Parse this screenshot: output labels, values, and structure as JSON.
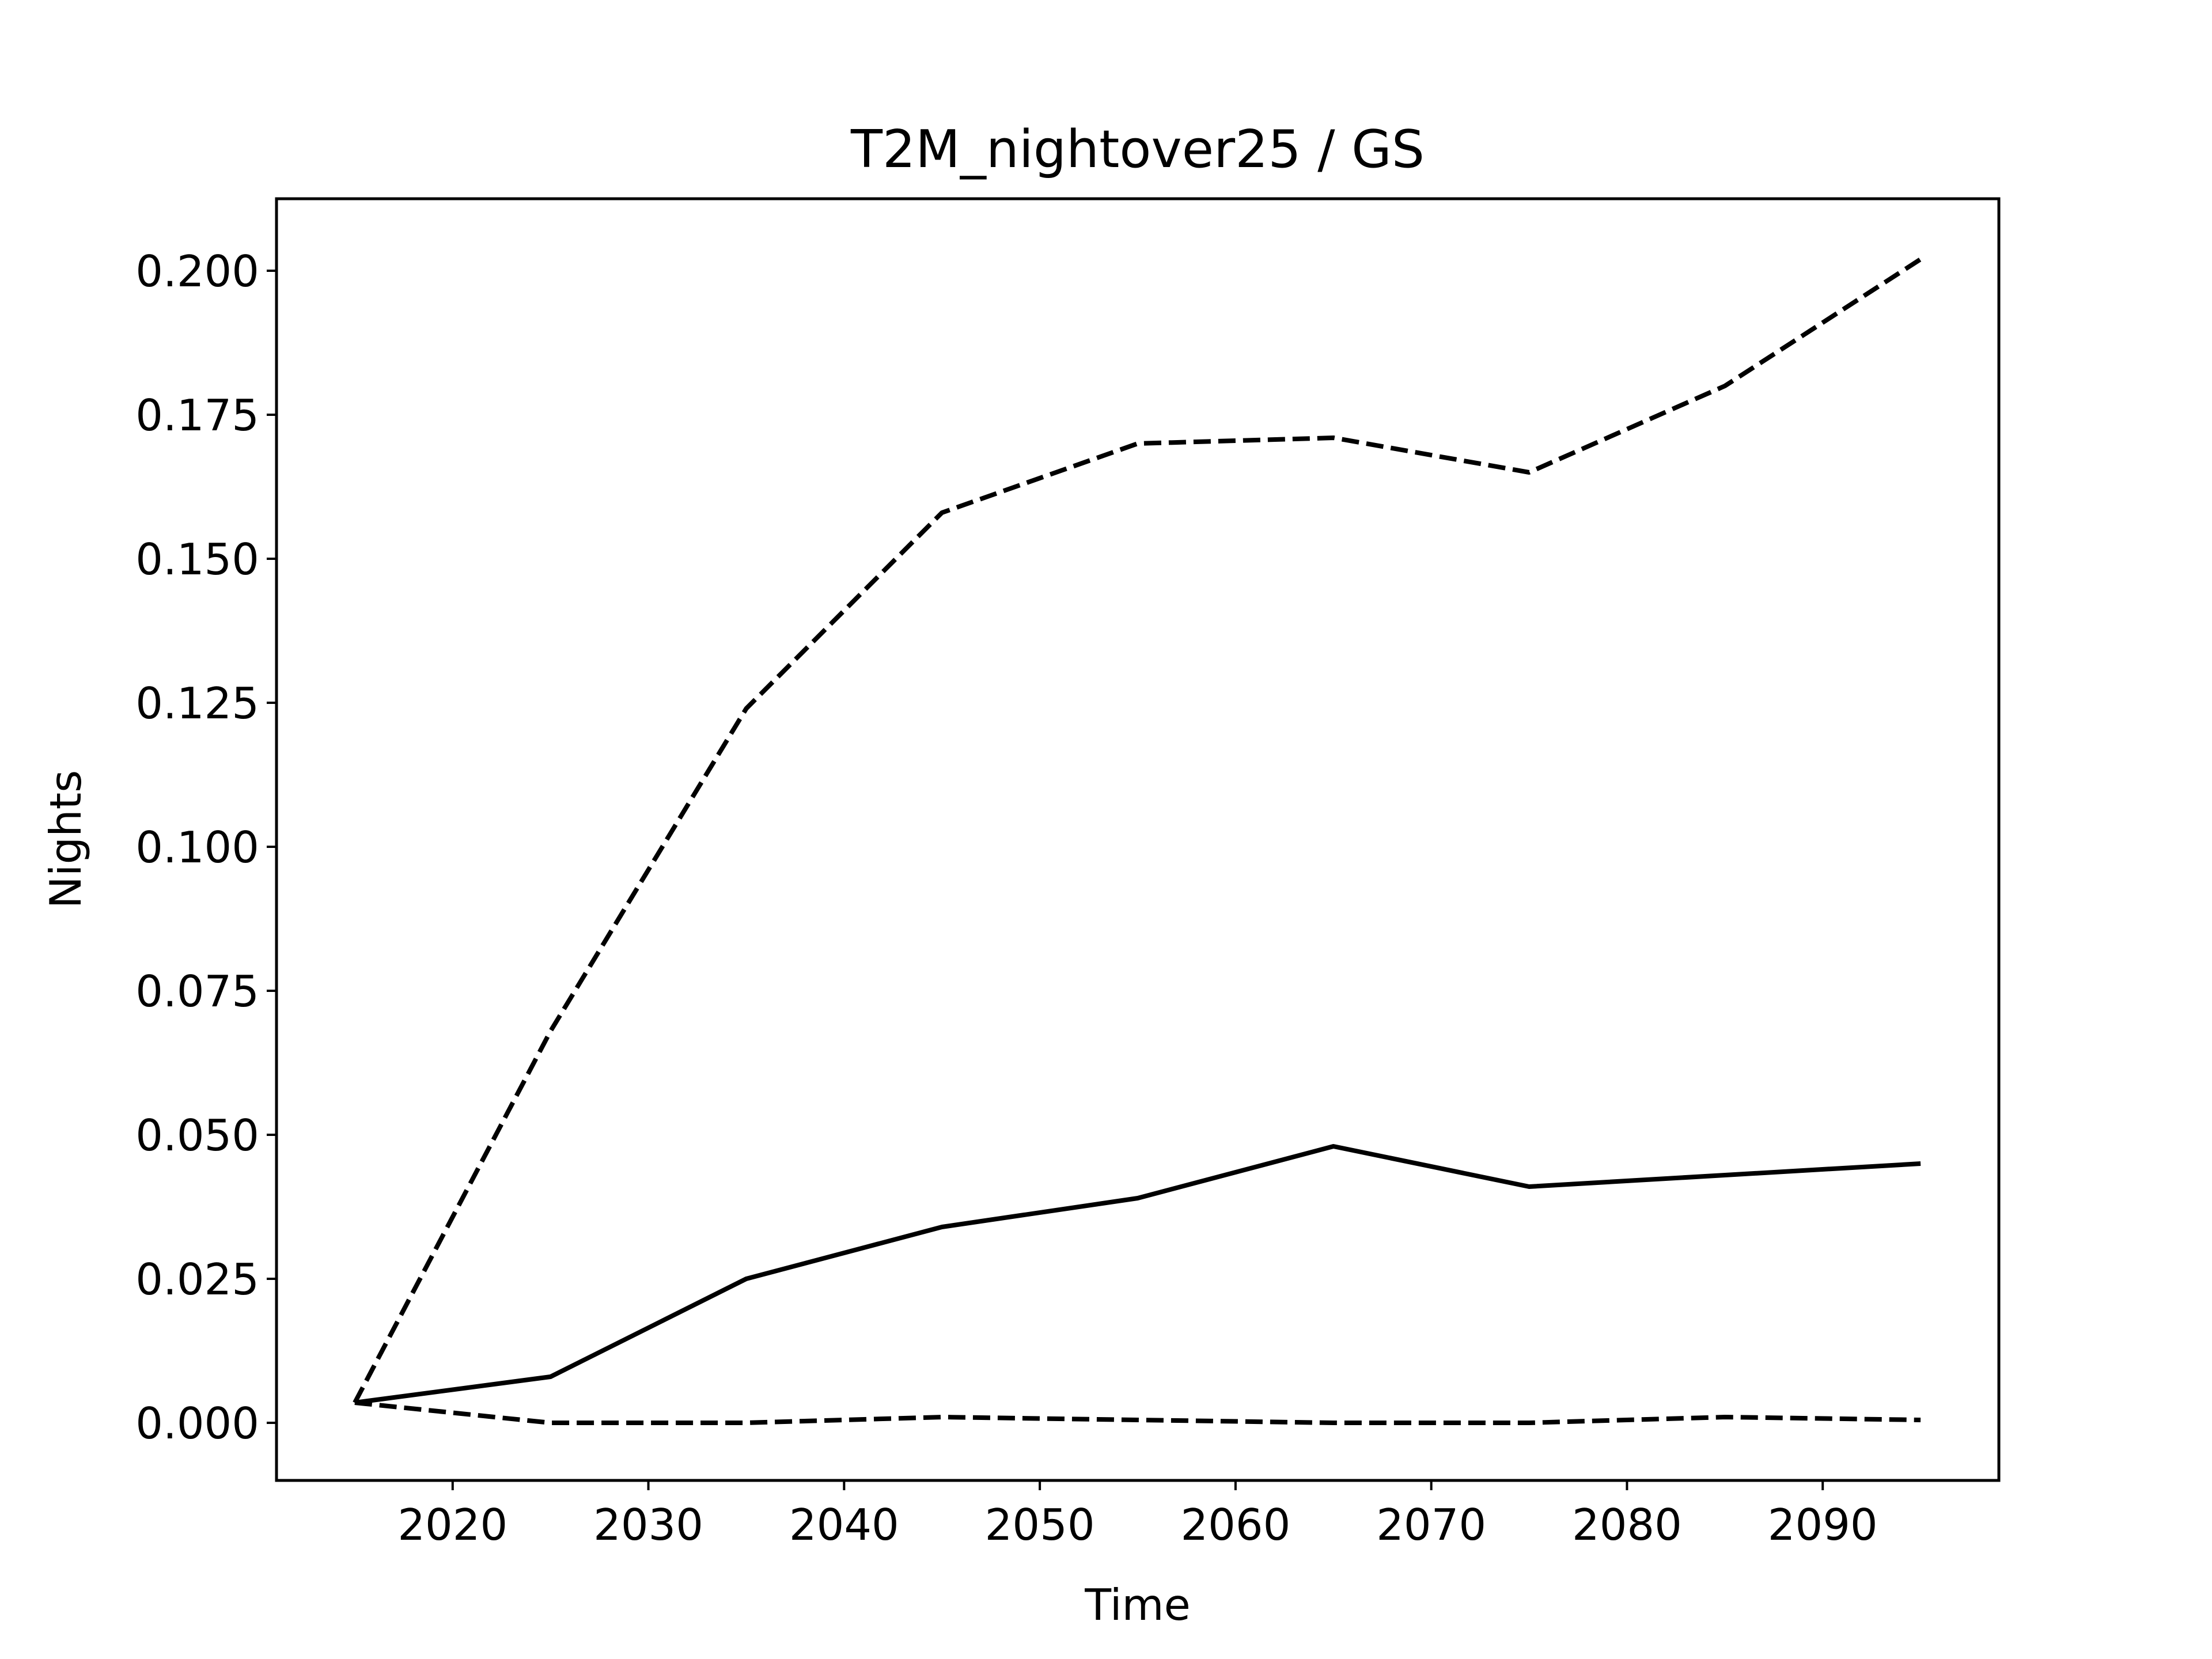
{
  "chart_data": {
    "type": "line",
    "title": "T2M_nightover25 / GS",
    "xlabel": "Time",
    "ylabel": "Nights",
    "x": [
      2015,
      2025,
      2035,
      2045,
      2055,
      2065,
      2075,
      2085,
      2095
    ],
    "xlim": [
      2011,
      2099
    ],
    "ylim": [
      -0.01,
      0.2125
    ],
    "xticks": [
      2020,
      2030,
      2040,
      2050,
      2060,
      2070,
      2080,
      2090
    ],
    "yticks": [
      0.0,
      0.025,
      0.05,
      0.075,
      0.1,
      0.125,
      0.15,
      0.175,
      0.2
    ],
    "ytick_labels": [
      "0.000",
      "0.025",
      "0.050",
      "0.075",
      "0.100",
      "0.125",
      "0.150",
      "0.175",
      "0.200"
    ],
    "grid": false,
    "series": [
      {
        "style": "solid",
        "color": "#000000",
        "values": [
          0.0035,
          0.008,
          0.025,
          0.034,
          0.039,
          0.048,
          0.041,
          0.043,
          0.045
        ]
      },
      {
        "style": "dashed",
        "color": "#000000",
        "values": [
          0.0035,
          0.068,
          0.124,
          0.158,
          0.17,
          0.171,
          0.165,
          0.18,
          0.202
        ]
      },
      {
        "style": "dashed",
        "color": "#000000",
        "values": [
          0.0035,
          0.0,
          0.0,
          0.001,
          0.0005,
          0.0,
          0.0,
          0.001,
          0.0005
        ]
      }
    ]
  }
}
